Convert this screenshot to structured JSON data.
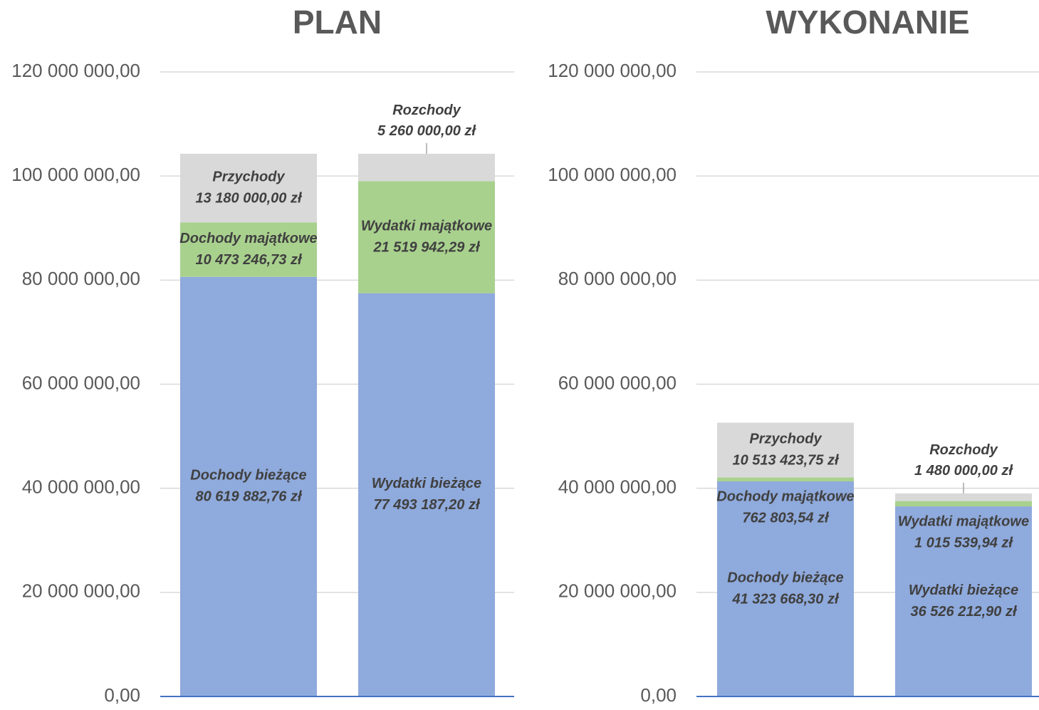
{
  "chart_data": [
    {
      "type": "bar",
      "stacked": true,
      "title": "PLAN",
      "categories": [
        null,
        null
      ],
      "ylim": [
        0,
        120000000
      ],
      "yticks": [
        {
          "value": 0,
          "label": "0,00"
        },
        {
          "value": 20000000,
          "label": "20 000 000,00"
        },
        {
          "value": 40000000,
          "label": "40 000 000,00"
        },
        {
          "value": 60000000,
          "label": "60 000 000,00"
        },
        {
          "value": 80000000,
          "label": "80 000 000,00"
        },
        {
          "value": 100000000,
          "label": "100 000 000,00"
        },
        {
          "value": 120000000,
          "label": "120 000 000,00"
        }
      ],
      "grid": true,
      "series": [
        {
          "name": "Dochody bieżące",
          "color": "#8faadc",
          "values": [
            80619882.76,
            null
          ],
          "value_labels": [
            "80 619 882,76 zł",
            null
          ]
        },
        {
          "name": "Dochody majątkowe",
          "color": "#a9d18e",
          "values": [
            10473246.73,
            null
          ],
          "value_labels": [
            "10 473 246,73 zł",
            null
          ]
        },
        {
          "name": "Przychody",
          "color": "#d9d9d9",
          "values": [
            13180000.0,
            null
          ],
          "value_labels": [
            "13 180 000,00 zł",
            null
          ]
        },
        {
          "name": "Wydatki bieżące",
          "color": "#8faadc",
          "values": [
            null,
            77493187.2
          ],
          "value_labels": [
            null,
            "77 493 187,20 zł"
          ]
        },
        {
          "name": "Wydatki majątkowe",
          "color": "#a9d18e",
          "values": [
            null,
            21519942.29
          ],
          "value_labels": [
            null,
            "21 519 942,29 zł"
          ]
        },
        {
          "name": "Rozchody",
          "color": "#d9d9d9",
          "values": [
            null,
            5260000.0
          ],
          "value_labels": [
            null,
            "5 260 000,00 zł"
          ]
        }
      ]
    },
    {
      "type": "bar",
      "stacked": true,
      "title": "WYKONANIE",
      "categories": [
        null,
        null
      ],
      "ylim": [
        0,
        120000000
      ],
      "yticks": [
        {
          "value": 0,
          "label": "0,00"
        },
        {
          "value": 20000000,
          "label": "20 000 000,00"
        },
        {
          "value": 40000000,
          "label": "40 000 000,00"
        },
        {
          "value": 60000000,
          "label": "60 000 000,00"
        },
        {
          "value": 80000000,
          "label": "80 000 000,00"
        },
        {
          "value": 100000000,
          "label": "100 000 000,00"
        },
        {
          "value": 120000000,
          "label": "120 000 000,00"
        }
      ],
      "grid": true,
      "series": [
        {
          "name": "Dochody bieżące",
          "color": "#8faadc",
          "values": [
            41323668.3,
            null
          ],
          "value_labels": [
            "41 323 668,30 zł",
            null
          ]
        },
        {
          "name": "Dochody majątkowe",
          "color": "#a9d18e",
          "values": [
            762803.54,
            null
          ],
          "value_labels": [
            "762 803,54 zł",
            null
          ]
        },
        {
          "name": "Przychody",
          "color": "#d9d9d9",
          "values": [
            10513423.75,
            null
          ],
          "value_labels": [
            "10 513 423,75 zł",
            null
          ]
        },
        {
          "name": "Wydatki bieżące",
          "color": "#8faadc",
          "values": [
            null,
            36526212.9
          ],
          "value_labels": [
            null,
            "36 526 212,90 zł"
          ]
        },
        {
          "name": "Wydatki majątkowe",
          "color": "#a9d18e",
          "values": [
            null,
            1015539.94
          ],
          "value_labels": [
            null,
            "1 015 539,94 zł"
          ]
        },
        {
          "name": "Rozchody",
          "color": "#d9d9d9",
          "values": [
            null,
            1480000.0
          ],
          "value_labels": [
            null,
            "1 480 000,00 zł"
          ]
        }
      ]
    }
  ]
}
